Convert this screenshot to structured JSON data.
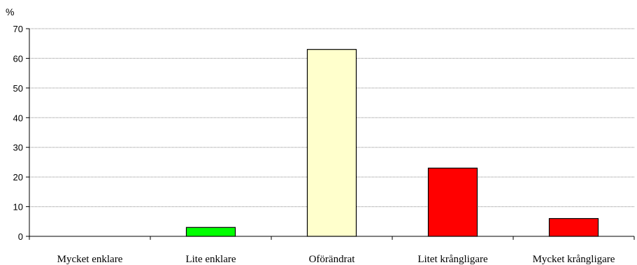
{
  "chart_data": {
    "type": "bar",
    "unit_label": "%",
    "categories": [
      "Mycket enklare",
      "Lite enklare",
      "Oförändrat",
      "Litet krångligare",
      "Mycket krångligare"
    ],
    "values": [
      0,
      3,
      63,
      23,
      6
    ],
    "colors": [
      "#ffffff",
      "#00ff00",
      "#ffffcc",
      "#ff0000",
      "#ff0000"
    ],
    "ylim": [
      0,
      70
    ],
    "yticks": [
      "0",
      "10",
      "20",
      "30",
      "40",
      "50",
      "60",
      "70"
    ],
    "grid": true,
    "legend": "none"
  }
}
